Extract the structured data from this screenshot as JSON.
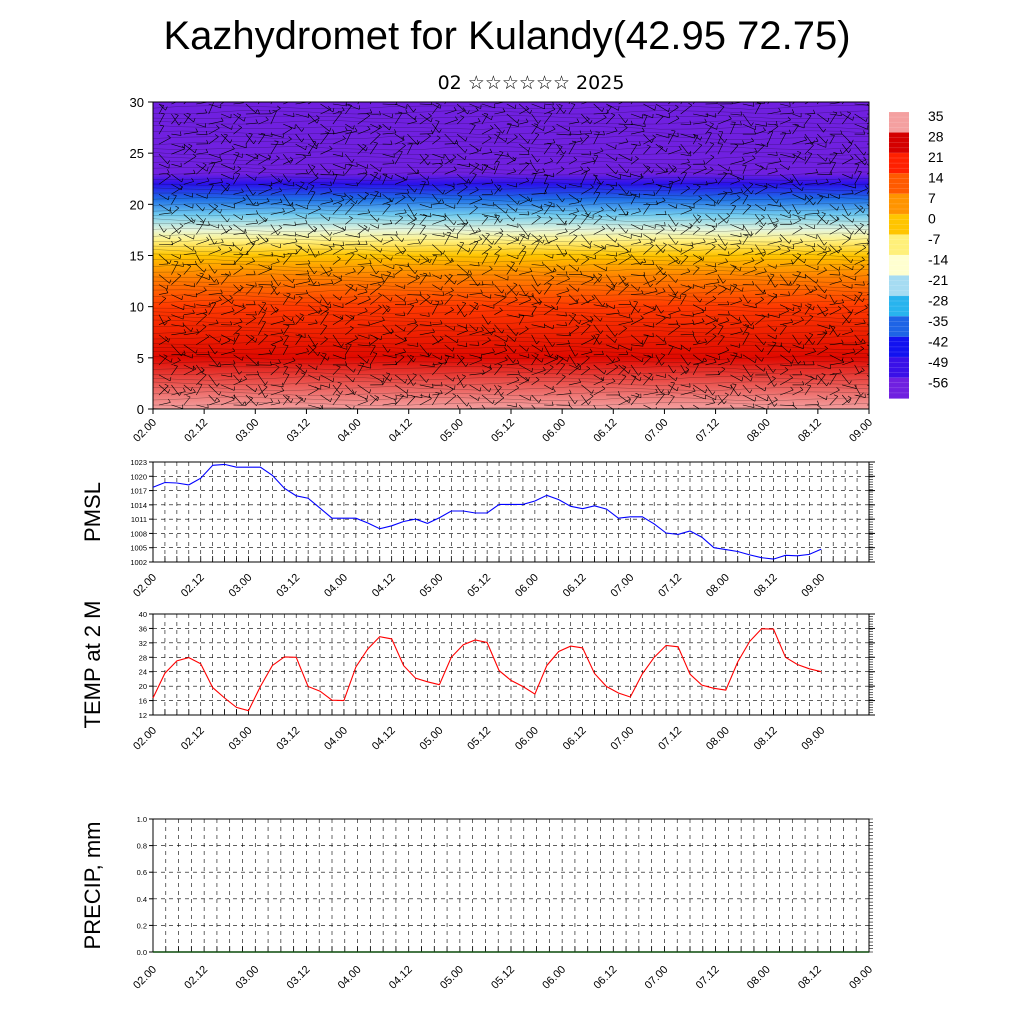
{
  "title": "Kazhydromet for Kulandy(42.95 72.75)",
  "subtitle": "02 ☆☆☆☆☆☆ 2025",
  "time_labels": [
    "02.00",
    "02.12",
    "03.00",
    "03.12",
    "04.00",
    "04.12",
    "05.00",
    "05.12",
    "06.00",
    "06.12",
    "07.00",
    "07.12",
    "08.00",
    "08.12",
    "09.00"
  ],
  "colors": {
    "pmsl": "#0000ff",
    "temp": "#ff0000",
    "precip": "#000000",
    "grid": "#000000"
  },
  "chart_data": [
    {
      "type": "heatmap",
      "name": "temperature_wind_profile",
      "xlabel": "",
      "ylabel": "",
      "ylim": [
        0,
        30
      ],
      "y_ticks": [
        0,
        5,
        10,
        15,
        20,
        25,
        30
      ],
      "x_ticks": [
        "02.00",
        "02.12",
        "03.00",
        "03.12",
        "04.00",
        "04.12",
        "05.00",
        "05.12",
        "06.00",
        "06.12",
        "07.00",
        "07.12",
        "08.00",
        "08.12",
        "09.00"
      ],
      "colorbar_labels": [
        "35",
        "28",
        "21",
        "14",
        "7",
        "0",
        "-7",
        "-14",
        "-21",
        "-28",
        "-35",
        "-42",
        "-49",
        "-56"
      ],
      "colorbar_colors": [
        "#f4a0a0",
        "#d40000",
        "#ff2000",
        "#ff5a00",
        "#ff9400",
        "#ffc500",
        "#fff07a",
        "#ffffd0",
        "#a6dcf2",
        "#28b4ee",
        "#1e64e6",
        "#1212f0",
        "#3a10e8",
        "#7020e0"
      ],
      "profile_levels": [
        0,
        5,
        10,
        13,
        15,
        16.5,
        17.5,
        19,
        20.5,
        22,
        23,
        25,
        28,
        30
      ],
      "profile_temps": [
        35,
        26,
        18,
        9,
        0,
        -8,
        -16,
        -24,
        -34,
        -46,
        -56,
        -58,
        -56,
        -56
      ],
      "grid": false,
      "overlay": "wind barbs"
    },
    {
      "type": "line",
      "name": "PMSL",
      "ylabel": "PMSL",
      "ylim": [
        1002,
        1023
      ],
      "y_ticks": [
        1002,
        1005,
        1008,
        1011,
        1014,
        1017,
        1020,
        1023
      ],
      "x": [
        "02.00",
        "02.03",
        "02.06",
        "02.09",
        "02.12",
        "02.15",
        "02.18",
        "02.21",
        "03.00",
        "03.03",
        "03.06",
        "03.09",
        "03.12",
        "03.15",
        "03.18",
        "03.21",
        "04.00",
        "04.03",
        "04.06",
        "04.09",
        "04.12",
        "04.15",
        "04.18",
        "04.21",
        "05.00",
        "05.03",
        "05.06",
        "05.09",
        "05.12",
        "05.15",
        "05.18",
        "05.21",
        "06.00",
        "06.03",
        "06.06",
        "06.09",
        "06.12",
        "06.15",
        "06.18",
        "06.21",
        "07.00",
        "07.03",
        "07.06",
        "07.09",
        "07.12",
        "07.15",
        "07.18",
        "07.21",
        "08.00",
        "08.03",
        "08.06",
        "08.09",
        "08.12",
        "08.15",
        "08.18",
        "08.21",
        "09.00"
      ],
      "values": [
        1017.7,
        1018.7,
        1018.6,
        1018.2,
        1019.6,
        1022.3,
        1022.5,
        1021.9,
        1021.9,
        1021.9,
        1020.2,
        1017.5,
        1015.9,
        1015.4,
        1013.3,
        1011.2,
        1011.2,
        1011.2,
        1010.2,
        1009.0,
        1009.6,
        1010.5,
        1011.0,
        1010.1,
        1011.3,
        1012.7,
        1012.7,
        1012.3,
        1012.3,
        1014.1,
        1014.1,
        1014.1,
        1014.8,
        1016.0,
        1015.1,
        1013.7,
        1013.2,
        1013.8,
        1013.1,
        1011.2,
        1011.5,
        1011.5,
        1010.0,
        1008.1,
        1007.8,
        1008.5,
        1007.2,
        1005.0,
        1004.6,
        1004.2,
        1003.5,
        1002.9,
        1002.6,
        1003.4,
        1003.3,
        1003.6,
        1004.7
      ],
      "grid": true
    },
    {
      "type": "line",
      "name": "TEMP at 2 M",
      "ylabel": "TEMP at 2 M",
      "ylim": [
        12,
        40
      ],
      "y_ticks": [
        12,
        16,
        20,
        24,
        28,
        32,
        36,
        40
      ],
      "x": [
        "02.00",
        "02.03",
        "02.06",
        "02.09",
        "02.12",
        "02.15",
        "02.18",
        "02.21",
        "03.00",
        "03.03",
        "03.06",
        "03.09",
        "03.12",
        "03.15",
        "03.18",
        "03.21",
        "04.00",
        "04.03",
        "04.06",
        "04.09",
        "04.12",
        "04.15",
        "04.18",
        "04.21",
        "05.00",
        "05.03",
        "05.06",
        "05.09",
        "05.12",
        "05.15",
        "05.18",
        "05.21",
        "06.00",
        "06.03",
        "06.06",
        "06.09",
        "06.12",
        "06.15",
        "06.18",
        "06.21",
        "07.00",
        "07.03",
        "07.06",
        "07.09",
        "07.12",
        "07.15",
        "07.18",
        "07.21",
        "08.00",
        "08.03",
        "08.06",
        "08.09",
        "08.12",
        "08.15",
        "08.18",
        "08.21",
        "09.00"
      ],
      "values": [
        16.7,
        23.6,
        27.0,
        27.9,
        26.2,
        19.6,
        16.7,
        14.1,
        13.2,
        19.9,
        25.7,
        28.1,
        28.0,
        19.9,
        18.6,
        16.1,
        16.0,
        25.3,
        30.3,
        33.7,
        33.1,
        25.7,
        22.2,
        21.2,
        20.4,
        28.0,
        31.5,
        32.8,
        32.1,
        24.3,
        21.6,
        19.9,
        17.8,
        25.7,
        29.6,
        31.1,
        30.6,
        23.5,
        19.9,
        18.1,
        17.0,
        23.4,
        28.0,
        31.3,
        30.9,
        23.3,
        20.3,
        19.4,
        18.9,
        26.7,
        32.4,
        35.9,
        35.8,
        28.0,
        26.0,
        24.8,
        24.0
      ],
      "grid": true
    },
    {
      "type": "line",
      "name": "PRECIP, mm",
      "ylabel": "PRECIP, mm",
      "ylim": [
        0,
        1
      ],
      "y_ticks": [
        0.0,
        0.2,
        0.4,
        0.6,
        0.8,
        1.0
      ],
      "y_tick_labels": [
        "0.0",
        "0.2",
        "0.4",
        "0.6",
        "0.8",
        "1.0"
      ],
      "x": [
        "02.00",
        "09.00"
      ],
      "values": [
        0,
        0
      ],
      "grid": true
    }
  ]
}
